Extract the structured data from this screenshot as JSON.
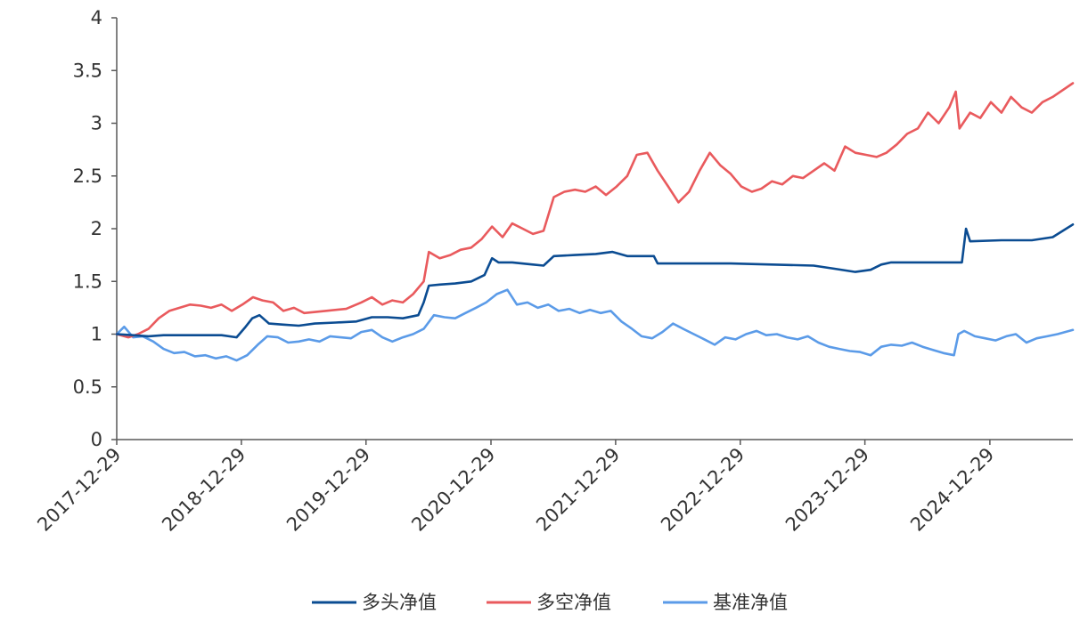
{
  "chart_data": {
    "type": "line",
    "title": "",
    "xlabel": "",
    "ylabel": "",
    "x_ticks": [
      "2017-12-29",
      "2018-12-29",
      "2019-12-29",
      "2020-12-29",
      "2021-12-29",
      "2022-12-29",
      "2023-12-29",
      "2024-12-29"
    ],
    "y_ticks": [
      "0",
      "0.5",
      "1",
      "1.5",
      "2",
      "2.5",
      "3",
      "3.5",
      "4"
    ],
    "xlim": [
      "2017-12-29",
      "2025-08-29"
    ],
    "ylim": [
      0,
      4
    ],
    "grid": false,
    "legend_position": "bottom-center",
    "series": [
      {
        "name": "多头净值",
        "color": "#0b4c92",
        "points": [
          [
            "2017-12-29",
            1.0
          ],
          [
            "2018-02-15",
            0.99
          ],
          [
            "2018-04-01",
            0.98
          ],
          [
            "2018-05-15",
            0.99
          ],
          [
            "2018-07-01",
            0.99
          ],
          [
            "2018-09-01",
            0.99
          ],
          [
            "2018-11-01",
            0.99
          ],
          [
            "2018-12-15",
            0.97
          ],
          [
            "2019-01-08",
            1.06
          ],
          [
            "2019-01-30",
            1.15
          ],
          [
            "2019-02-20",
            1.18
          ],
          [
            "2019-03-20",
            1.1
          ],
          [
            "2019-05-01",
            1.09
          ],
          [
            "2019-06-15",
            1.08
          ],
          [
            "2019-08-01",
            1.1
          ],
          [
            "2019-10-01",
            1.11
          ],
          [
            "2019-12-01",
            1.12
          ],
          [
            "2020-01-15",
            1.16
          ],
          [
            "2020-03-01",
            1.16
          ],
          [
            "2020-04-15",
            1.15
          ],
          [
            "2020-05-30",
            1.18
          ],
          [
            "2020-06-15",
            1.3
          ],
          [
            "2020-06-30",
            1.46
          ],
          [
            "2020-08-01",
            1.47
          ],
          [
            "2020-09-15",
            1.48
          ],
          [
            "2020-11-01",
            1.5
          ],
          [
            "2020-12-10",
            1.56
          ],
          [
            "2021-01-01",
            1.72
          ],
          [
            "2021-01-20",
            1.68
          ],
          [
            "2021-03-01",
            1.68
          ],
          [
            "2021-05-01",
            1.66
          ],
          [
            "2021-06-01",
            1.65
          ],
          [
            "2021-07-01",
            1.74
          ],
          [
            "2021-09-01",
            1.75
          ],
          [
            "2021-11-01",
            1.76
          ],
          [
            "2021-12-20",
            1.78
          ],
          [
            "2022-02-01",
            1.74
          ],
          [
            "2022-04-20",
            1.74
          ],
          [
            "2022-05-01",
            1.67
          ],
          [
            "2022-08-01",
            1.67
          ],
          [
            "2022-12-01",
            1.67
          ],
          [
            "2023-04-01",
            1.66
          ],
          [
            "2023-08-01",
            1.65
          ],
          [
            "2023-10-01",
            1.62
          ],
          [
            "2023-12-01",
            1.59
          ],
          [
            "2024-01-15",
            1.61
          ],
          [
            "2024-02-15",
            1.66
          ],
          [
            "2024-03-15",
            1.68
          ],
          [
            "2024-06-01",
            1.68
          ],
          [
            "2024-08-01",
            1.68
          ],
          [
            "2024-10-08",
            1.68
          ],
          [
            "2024-10-20",
            2.0
          ],
          [
            "2024-11-01",
            1.88
          ],
          [
            "2025-02-01",
            1.89
          ],
          [
            "2025-05-01",
            1.89
          ],
          [
            "2025-07-01",
            1.92
          ],
          [
            "2025-08-29",
            2.04
          ]
        ]
      },
      {
        "name": "多空净值",
        "color": "#e95a5d",
        "points": [
          [
            "2017-12-29",
            1.0
          ],
          [
            "2018-02-01",
            0.97
          ],
          [
            "2018-03-01",
            1.0
          ],
          [
            "2018-04-01",
            1.05
          ],
          [
            "2018-05-01",
            1.15
          ],
          [
            "2018-06-01",
            1.22
          ],
          [
            "2018-07-01",
            1.25
          ],
          [
            "2018-08-01",
            1.28
          ],
          [
            "2018-09-01",
            1.27
          ],
          [
            "2018-10-01",
            1.25
          ],
          [
            "2018-11-01",
            1.28
          ],
          [
            "2018-12-01",
            1.22
          ],
          [
            "2019-01-01",
            1.28
          ],
          [
            "2019-02-01",
            1.35
          ],
          [
            "2019-03-01",
            1.32
          ],
          [
            "2019-04-01",
            1.3
          ],
          [
            "2019-05-01",
            1.22
          ],
          [
            "2019-06-01",
            1.25
          ],
          [
            "2019-07-01",
            1.2
          ],
          [
            "2019-09-01",
            1.22
          ],
          [
            "2019-11-01",
            1.24
          ],
          [
            "2019-12-15",
            1.3
          ],
          [
            "2020-01-15",
            1.35
          ],
          [
            "2020-02-15",
            1.28
          ],
          [
            "2020-03-15",
            1.32
          ],
          [
            "2020-04-15",
            1.3
          ],
          [
            "2020-05-15",
            1.38
          ],
          [
            "2020-06-15",
            1.5
          ],
          [
            "2020-06-30",
            1.78
          ],
          [
            "2020-08-01",
            1.72
          ],
          [
            "2020-09-01",
            1.75
          ],
          [
            "2020-10-01",
            1.8
          ],
          [
            "2020-11-01",
            1.82
          ],
          [
            "2020-12-01",
            1.9
          ],
          [
            "2021-01-01",
            2.02
          ],
          [
            "2021-02-01",
            1.92
          ],
          [
            "2021-03-01",
            2.05
          ],
          [
            "2021-04-01",
            2.0
          ],
          [
            "2021-05-01",
            1.95
          ],
          [
            "2021-06-01",
            1.98
          ],
          [
            "2021-07-01",
            2.3
          ],
          [
            "2021-08-01",
            2.35
          ],
          [
            "2021-09-01",
            2.37
          ],
          [
            "2021-10-01",
            2.35
          ],
          [
            "2021-11-01",
            2.4
          ],
          [
            "2021-12-01",
            2.32
          ],
          [
            "2022-01-01",
            2.4
          ],
          [
            "2022-02-01",
            2.5
          ],
          [
            "2022-03-01",
            2.7
          ],
          [
            "2022-04-01",
            2.72
          ],
          [
            "2022-05-01",
            2.55
          ],
          [
            "2022-06-01",
            2.4
          ],
          [
            "2022-07-01",
            2.25
          ],
          [
            "2022-08-01",
            2.35
          ],
          [
            "2022-09-01",
            2.55
          ],
          [
            "2022-10-01",
            2.72
          ],
          [
            "2022-11-01",
            2.6
          ],
          [
            "2022-12-01",
            2.52
          ],
          [
            "2023-01-01",
            2.4
          ],
          [
            "2023-02-01",
            2.35
          ],
          [
            "2023-03-01",
            2.38
          ],
          [
            "2023-04-01",
            2.45
          ],
          [
            "2023-05-01",
            2.42
          ],
          [
            "2023-06-01",
            2.5
          ],
          [
            "2023-07-01",
            2.48
          ],
          [
            "2023-08-01",
            2.55
          ],
          [
            "2023-09-01",
            2.62
          ],
          [
            "2023-10-01",
            2.55
          ],
          [
            "2023-11-01",
            2.78
          ],
          [
            "2023-12-01",
            2.72
          ],
          [
            "2024-01-01",
            2.7
          ],
          [
            "2024-02-01",
            2.68
          ],
          [
            "2024-03-01",
            2.72
          ],
          [
            "2024-04-01",
            2.8
          ],
          [
            "2024-05-01",
            2.9
          ],
          [
            "2024-06-01",
            2.95
          ],
          [
            "2024-07-01",
            3.1
          ],
          [
            "2024-08-01",
            3.0
          ],
          [
            "2024-09-01",
            3.15
          ],
          [
            "2024-09-20",
            3.3
          ],
          [
            "2024-10-01",
            2.95
          ],
          [
            "2024-11-01",
            3.1
          ],
          [
            "2024-12-01",
            3.05
          ],
          [
            "2025-01-01",
            3.2
          ],
          [
            "2025-02-01",
            3.1
          ],
          [
            "2025-03-01",
            3.25
          ],
          [
            "2025-04-01",
            3.15
          ],
          [
            "2025-05-01",
            3.1
          ],
          [
            "2025-06-01",
            3.2
          ],
          [
            "2025-07-01",
            3.25
          ],
          [
            "2025-08-29",
            3.38
          ]
        ]
      },
      {
        "name": "基准净值",
        "color": "#5b9be8",
        "points": [
          [
            "2017-12-29",
            1.0
          ],
          [
            "2018-01-20",
            1.07
          ],
          [
            "2018-02-15",
            0.97
          ],
          [
            "2018-03-15",
            0.98
          ],
          [
            "2018-04-15",
            0.93
          ],
          [
            "2018-05-15",
            0.86
          ],
          [
            "2018-06-15",
            0.82
          ],
          [
            "2018-07-15",
            0.83
          ],
          [
            "2018-08-15",
            0.79
          ],
          [
            "2018-09-15",
            0.8
          ],
          [
            "2018-10-15",
            0.77
          ],
          [
            "2018-11-15",
            0.79
          ],
          [
            "2018-12-15",
            0.75
          ],
          [
            "2019-01-15",
            0.8
          ],
          [
            "2019-02-15",
            0.9
          ],
          [
            "2019-03-15",
            0.98
          ],
          [
            "2019-04-15",
            0.97
          ],
          [
            "2019-05-15",
            0.92
          ],
          [
            "2019-06-15",
            0.93
          ],
          [
            "2019-07-15",
            0.95
          ],
          [
            "2019-08-15",
            0.93
          ],
          [
            "2019-09-15",
            0.98
          ],
          [
            "2019-10-15",
            0.97
          ],
          [
            "2019-11-15",
            0.96
          ],
          [
            "2019-12-15",
            1.02
          ],
          [
            "2020-01-15",
            1.04
          ],
          [
            "2020-02-15",
            0.97
          ],
          [
            "2020-03-15",
            0.93
          ],
          [
            "2020-04-15",
            0.97
          ],
          [
            "2020-05-15",
            1.0
          ],
          [
            "2020-06-15",
            1.05
          ],
          [
            "2020-07-15",
            1.18
          ],
          [
            "2020-08-15",
            1.16
          ],
          [
            "2020-09-15",
            1.15
          ],
          [
            "2020-10-15",
            1.2
          ],
          [
            "2020-11-15",
            1.25
          ],
          [
            "2020-12-15",
            1.3
          ],
          [
            "2021-01-15",
            1.38
          ],
          [
            "2021-02-15",
            1.42
          ],
          [
            "2021-03-15",
            1.28
          ],
          [
            "2021-04-15",
            1.3
          ],
          [
            "2021-05-15",
            1.25
          ],
          [
            "2021-06-15",
            1.28
          ],
          [
            "2021-07-15",
            1.22
          ],
          [
            "2021-08-15",
            1.24
          ],
          [
            "2021-09-15",
            1.2
          ],
          [
            "2021-10-15",
            1.23
          ],
          [
            "2021-11-15",
            1.2
          ],
          [
            "2021-12-15",
            1.22
          ],
          [
            "2022-01-15",
            1.12
          ],
          [
            "2022-02-15",
            1.05
          ],
          [
            "2022-03-15",
            0.98
          ],
          [
            "2022-04-15",
            0.96
          ],
          [
            "2022-05-15",
            1.02
          ],
          [
            "2022-06-15",
            1.1
          ],
          [
            "2022-07-15",
            1.05
          ],
          [
            "2022-08-15",
            1.0
          ],
          [
            "2022-09-15",
            0.95
          ],
          [
            "2022-10-15",
            0.9
          ],
          [
            "2022-11-15",
            0.97
          ],
          [
            "2022-12-15",
            0.95
          ],
          [
            "2023-01-15",
            1.0
          ],
          [
            "2023-02-15",
            1.03
          ],
          [
            "2023-03-15",
            0.99
          ],
          [
            "2023-04-15",
            1.0
          ],
          [
            "2023-05-15",
            0.97
          ],
          [
            "2023-06-15",
            0.95
          ],
          [
            "2023-07-15",
            0.98
          ],
          [
            "2023-08-15",
            0.92
          ],
          [
            "2023-09-15",
            0.88
          ],
          [
            "2023-10-15",
            0.86
          ],
          [
            "2023-11-15",
            0.84
          ],
          [
            "2023-12-15",
            0.83
          ],
          [
            "2024-01-15",
            0.8
          ],
          [
            "2024-02-15",
            0.88
          ],
          [
            "2024-03-15",
            0.9
          ],
          [
            "2024-04-15",
            0.89
          ],
          [
            "2024-05-15",
            0.92
          ],
          [
            "2024-06-15",
            0.88
          ],
          [
            "2024-07-15",
            0.85
          ],
          [
            "2024-08-15",
            0.82
          ],
          [
            "2024-09-15",
            0.8
          ],
          [
            "2024-09-28",
            1.0
          ],
          [
            "2024-10-15",
            1.03
          ],
          [
            "2024-11-15",
            0.98
          ],
          [
            "2024-12-15",
            0.96
          ],
          [
            "2025-01-15",
            0.94
          ],
          [
            "2025-02-15",
            0.98
          ],
          [
            "2025-03-15",
            1.0
          ],
          [
            "2025-04-15",
            0.92
          ],
          [
            "2025-05-15",
            0.96
          ],
          [
            "2025-06-15",
            0.98
          ],
          [
            "2025-07-15",
            1.0
          ],
          [
            "2025-08-29",
            1.04
          ]
        ]
      }
    ]
  }
}
